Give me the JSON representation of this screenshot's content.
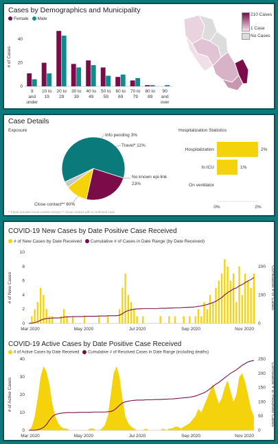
{
  "colors": {
    "female": "#7a0c4a",
    "male": "#0f8a8f",
    "yellow": "#f5d30c",
    "purple": "#7a0c4a",
    "teal": "#0b7a7a",
    "grey": "#c8c8c8",
    "dark": "#1a3a3a"
  },
  "demographics": {
    "title": "Cases by Demographics and Municipality",
    "legend_female": "Female",
    "legend_male": "Male",
    "ylabel": "# of Cases",
    "map_legend": {
      "max": "210 Cases",
      "min": "1 Case",
      "none": "No Cases"
    }
  },
  "case_details": {
    "title": "Case Details",
    "exposure_label": "Exposure",
    "hosp_title": "Hospitalization Statistics",
    "pie_labels": {
      "info": "Info pending 3%",
      "travel": "Travel* 11%",
      "noepi": "No known epi-link",
      "noepi_pct": "23%",
      "close": "Close contact** 60%"
    },
    "hosp_rows": [
      {
        "label": "Hospitalization",
        "pct": "2%",
        "value": 2
      },
      {
        "label": "In ICU",
        "pct": "1%",
        "value": 1
      },
      {
        "label": "On ventilator",
        "pct": "",
        "value": 0
      }
    ],
    "hosp_ticks": [
      "0%",
      "2%"
    ],
    "footnote": "* Travel includes travel outside Ontario ** Close contact with a confirmed case"
  },
  "new_cases": {
    "title": "COVID-19 New Cases by Date Positive Case Received",
    "legend1": "# of New Cases by Date Received",
    "legend2": "Cumulative # of Cases in Date Range (by Date Received)",
    "ylabel_left": "# of New Cases",
    "ylabel_right": "Cumulative # of Cases"
  },
  "active_cases": {
    "title": "COVID-19 Active Cases by Date Positive Case Received",
    "legend1": "# of Active Cases by Date Received",
    "legend2": "Cumulative # of Resolved Cases in Date Range (including deaths)",
    "ylabel_left": "# of Active Cases",
    "ylabel_right": "Cumulative # of Resolved Cases"
  },
  "chart_data": [
    {
      "type": "bar",
      "title": "Cases by Demographics and Municipality",
      "ylabel": "# of Cases",
      "ylim": [
        0,
        50
      ],
      "yticks": [
        0,
        20,
        40
      ],
      "categories": [
        "9 and under",
        "10 to 19",
        "20 to 29",
        "30 to 39",
        "40 to 49",
        "50 to 59",
        "60 to 69",
        "70 to 79",
        "80 to 89",
        "90 and over"
      ],
      "series": [
        {
          "name": "Female",
          "values": [
            11,
            20,
            47,
            19,
            22,
            16,
            8,
            5,
            1,
            0
          ]
        },
        {
          "name": "Male",
          "values": [
            6,
            11,
            43,
            16,
            18,
            9,
            10,
            7,
            1,
            1
          ]
        }
      ]
    },
    {
      "type": "pie",
      "title": "Exposure",
      "slices": [
        {
          "label": "Close contact**",
          "value": 60
        },
        {
          "label": "No known epi-link",
          "value": 23
        },
        {
          "label": "Travel*",
          "value": 11
        },
        {
          "label": "Info pending",
          "value": 3
        }
      ]
    },
    {
      "type": "bar",
      "title": "Hospitalization Statistics",
      "categories": [
        "Hospitalization",
        "In ICU",
        "On ventilator"
      ],
      "values": [
        2,
        1,
        0
      ],
      "xticks": [
        "0%",
        "2%"
      ]
    },
    {
      "type": "bar",
      "title": "COVID-19 New Cases by Date Positive Case Received",
      "ylabel": "# of New Cases",
      "y2label": "Cumulative # of Cases",
      "ylim": [
        0,
        10
      ],
      "y2lim": [
        0,
        250
      ],
      "yticks": [
        0,
        2,
        4,
        6,
        8,
        10
      ],
      "y2ticks": [
        0,
        100,
        200
      ],
      "xticks": [
        "Mar 2020",
        "May 2020",
        "Jul 2020",
        "Sep 2020",
        "Nov 2020"
      ],
      "series": [
        {
          "name": "# of New Cases by Date Received",
          "values": [
            0,
            1,
            2,
            3,
            5,
            4,
            2,
            1,
            1,
            0,
            0,
            1,
            2,
            1,
            0,
            1,
            0,
            0,
            0,
            1,
            0,
            0,
            0,
            0,
            1,
            0,
            0,
            1,
            0,
            0,
            0,
            2,
            5,
            7,
            4,
            3,
            2,
            1,
            0,
            1,
            0,
            0,
            0,
            0,
            0,
            1,
            0,
            0,
            1,
            0,
            1,
            0,
            0,
            1,
            0,
            1,
            0,
            1,
            2,
            1,
            3,
            2,
            4,
            3,
            5,
            6,
            7,
            9,
            8,
            6,
            7,
            3,
            8,
            4,
            7,
            6,
            5,
            7
          ]
        },
        {
          "name": "Cumulative # of Cases in Date Range (by Date Received)",
          "values": [
            0,
            1,
            3,
            6,
            11,
            15,
            17,
            18,
            19,
            19,
            19,
            20,
            22,
            23,
            23,
            24,
            24,
            24,
            24,
            25,
            25,
            25,
            25,
            25,
            26,
            26,
            26,
            27,
            27,
            27,
            27,
            29,
            34,
            41,
            45,
            48,
            50,
            51,
            51,
            52,
            52,
            52,
            52,
            52,
            52,
            53,
            53,
            53,
            54,
            54,
            55,
            55,
            55,
            56,
            56,
            57,
            57,
            58,
            60,
            61,
            64,
            66,
            70,
            73,
            78,
            84,
            91,
            100,
            108,
            114,
            121,
            124,
            132,
            136,
            143,
            149,
            154,
            161
          ]
        }
      ]
    },
    {
      "type": "area",
      "title": "COVID-19 Active Cases by Date Positive Case Received",
      "ylabel": "# of Active Cases",
      "y2label": "Cumulative # of Resolved Cases",
      "ylim": [
        0,
        40
      ],
      "y2lim": [
        0,
        250
      ],
      "yticks": [
        0,
        10,
        20,
        30,
        40
      ],
      "y2ticks": [
        0,
        50,
        100,
        150,
        200,
        250
      ],
      "xticks": [
        "Mar 2020",
        "May 2020",
        "Jul 2020",
        "Sep 2020",
        "Nov 2020"
      ],
      "series": [
        {
          "name": "# of Active Cases by Date Received",
          "values": [
            0,
            2,
            8,
            18,
            30,
            36,
            33,
            26,
            15,
            8,
            4,
            2,
            1,
            1,
            0,
            0,
            0,
            0,
            0,
            0,
            0,
            1,
            1,
            0,
            0,
            1,
            3,
            8,
            20,
            32,
            36,
            30,
            18,
            8,
            4,
            2,
            1,
            0,
            0,
            0,
            1,
            0,
            0,
            0,
            0,
            0,
            1,
            0,
            1,
            1,
            2,
            2,
            1,
            2,
            3,
            4,
            6,
            8,
            12,
            10,
            14,
            18,
            22,
            26,
            20,
            15,
            18,
            24,
            28,
            22,
            16,
            20,
            30,
            32,
            27,
            20,
            12,
            8
          ]
        },
        {
          "name": "Cumulative # of Resolved Cases in Date Range (including deaths)",
          "values": [
            0,
            0,
            0,
            2,
            5,
            10,
            20,
            35,
            48,
            55,
            58,
            60,
            61,
            62,
            62,
            62,
            62,
            63,
            63,
            63,
            63,
            63,
            64,
            64,
            64,
            64,
            64,
            65,
            66,
            70,
            78,
            88,
            96,
            100,
            102,
            104,
            105,
            106,
            106,
            106,
            107,
            107,
            107,
            108,
            108,
            108,
            109,
            109,
            110,
            110,
            111,
            112,
            113,
            114,
            115,
            116,
            118,
            120,
            124,
            128,
            132,
            138,
            146,
            154,
            162,
            168,
            176,
            184,
            192,
            200,
            206,
            212,
            220,
            228,
            234,
            240,
            243,
            245
          ]
        }
      ]
    }
  ]
}
